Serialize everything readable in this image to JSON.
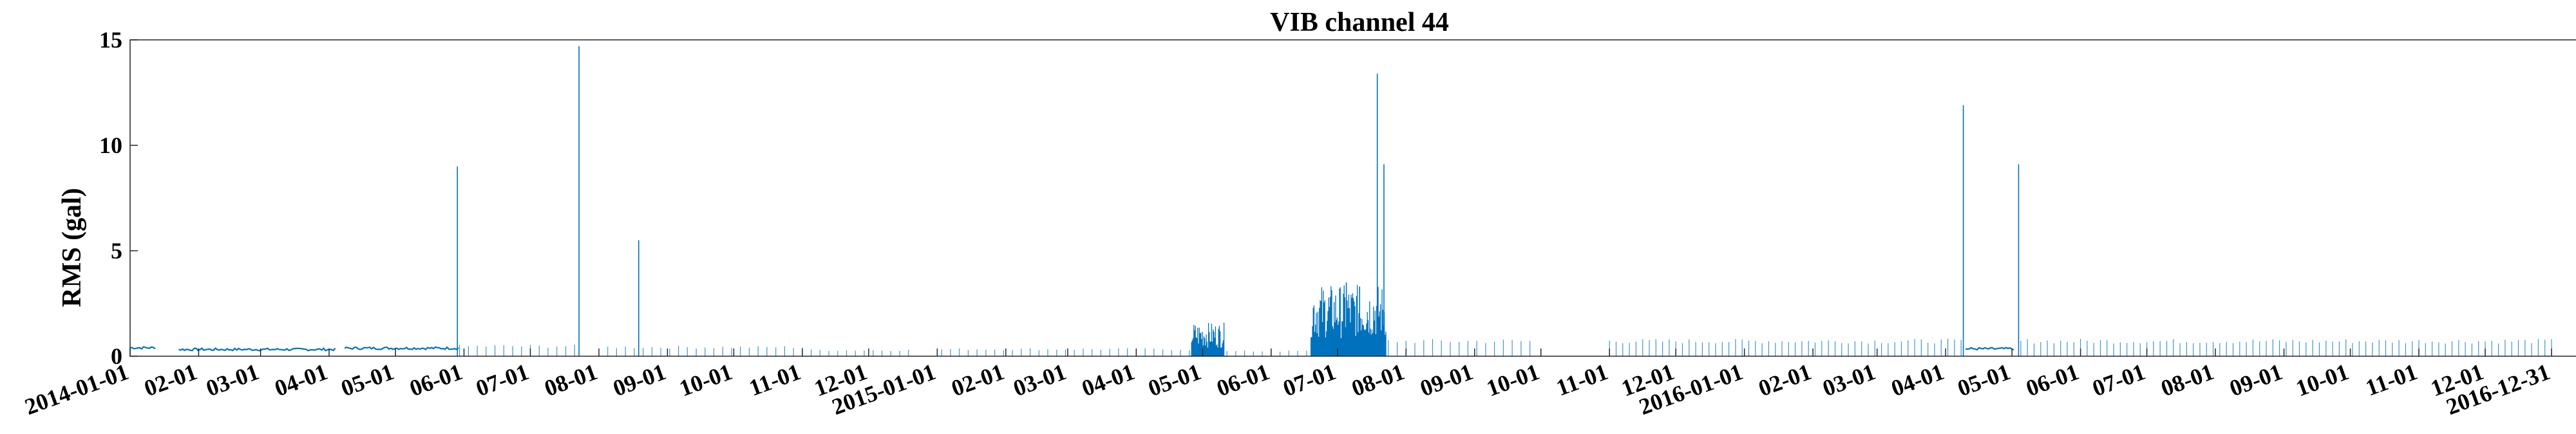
{
  "chart_data": {
    "type": "line",
    "title": "VIB channel 44",
    "xlabel": "",
    "ylabel": "RMS (gal)",
    "ylim": [
      0,
      15
    ],
    "yticks": [
      0,
      5,
      10,
      15
    ],
    "xlim": [
      "2014-01-01",
      "2016-12-31"
    ],
    "xtick_labels": [
      "2014-01-01",
      "02-01",
      "03-01",
      "04-01",
      "05-01",
      "06-01",
      "07-01",
      "08-01",
      "09-01",
      "10-01",
      "11-01",
      "12-01",
      "2015-01-01",
      "02-01",
      "03-01",
      "04-01",
      "05-01",
      "06-01",
      "07-01",
      "08-01",
      "09-01",
      "10-01",
      "11-01",
      "12-01",
      "2016-01-01",
      "02-01",
      "03-01",
      "04-01",
      "05-01",
      "06-01",
      "07-01",
      "08-01",
      "09-01",
      "10-01",
      "11-01",
      "12-01",
      "2016-12-31"
    ],
    "xtick_dates": [
      "2014-01-01",
      "2014-02-01",
      "2014-03-01",
      "2014-04-01",
      "2014-05-01",
      "2014-06-01",
      "2014-07-01",
      "2014-08-01",
      "2014-09-01",
      "2014-10-01",
      "2014-11-01",
      "2014-12-01",
      "2015-01-01",
      "2015-02-01",
      "2015-03-01",
      "2015-04-01",
      "2015-05-01",
      "2015-06-01",
      "2015-07-01",
      "2015-08-01",
      "2015-09-01",
      "2015-10-01",
      "2015-11-01",
      "2015-12-01",
      "2016-01-01",
      "2016-02-01",
      "2016-03-01",
      "2016-04-01",
      "2016-05-01",
      "2016-06-01",
      "2016-07-01",
      "2016-08-01",
      "2016-09-01",
      "2016-10-01",
      "2016-11-01",
      "2016-12-01",
      "2016-12-31"
    ],
    "grid": false,
    "line_color": "#0072bd",
    "baseline_segments": [
      {
        "start": "2014-01-01",
        "end": "2014-01-13",
        "level": 0.4
      },
      {
        "start": "2014-01-23",
        "end": "2014-04-04",
        "level": 0.32
      },
      {
        "start": "2014-04-08",
        "end": "2014-05-30",
        "level": 0.38
      },
      {
        "start": "2016-04-10",
        "end": "2016-05-02",
        "level": 0.35
      }
    ],
    "sparse_ranges": [
      {
        "start": "2014-05-30",
        "end": "2014-07-23",
        "level": 0.5,
        "step_days": 4
      },
      {
        "start": "2014-08-05",
        "end": "2014-11-01",
        "level": 0.45,
        "step_days": 4
      },
      {
        "start": "2014-11-01",
        "end": "2014-12-20",
        "level": 0.3,
        "step_days": 4
      },
      {
        "start": "2015-01-03",
        "end": "2015-04-26",
        "level": 0.35,
        "step_days": 4
      },
      {
        "start": "2015-05-12",
        "end": "2015-06-18",
        "level": 0.25,
        "step_days": 4
      },
      {
        "start": "2015-07-24",
        "end": "2015-09-28",
        "level": 0.75,
        "step_days": 4
      },
      {
        "start": "2015-11-01",
        "end": "2016-04-09",
        "level": 0.75,
        "step_days": 3
      },
      {
        "start": "2016-05-05",
        "end": "2016-12-31",
        "level": 0.75,
        "step_days": 3
      }
    ],
    "dense_bursts": [
      {
        "start": "2015-04-26",
        "end": "2015-05-11",
        "max": 1.6
      },
      {
        "start": "2015-06-19",
        "end": "2015-07-23",
        "max": 3.4
      }
    ],
    "spikes": [
      {
        "date": "2014-05-29",
        "value": 9.0
      },
      {
        "date": "2014-07-23",
        "value": 14.7
      },
      {
        "date": "2014-08-19",
        "value": 5.5
      },
      {
        "date": "2015-07-05",
        "value": 3.5
      },
      {
        "date": "2015-07-11",
        "value": 3.3
      },
      {
        "date": "2015-07-19",
        "value": 13.4
      },
      {
        "date": "2015-07-22",
        "value": 9.1
      },
      {
        "date": "2016-04-09",
        "value": 11.9
      },
      {
        "date": "2016-05-04",
        "value": 9.1
      }
    ]
  }
}
